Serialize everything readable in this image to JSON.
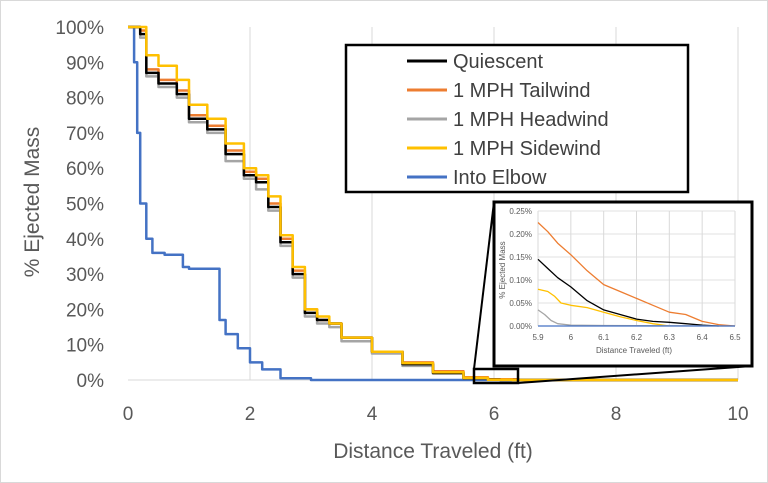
{
  "chart_data": [
    {
      "type": "line",
      "title": "",
      "xlabel": "Distance Traveled (ft)",
      "ylabel": "% Ejected Mass",
      "xlim": [
        0,
        10
      ],
      "ylim": [
        0,
        100
      ],
      "xticks": [
        "0",
        "2",
        "4",
        "6",
        "8",
        "10"
      ],
      "yticks": [
        "0%",
        "10%",
        "20%",
        "30%",
        "40%",
        "50%",
        "60%",
        "70%",
        "80%",
        "90%",
        "100%"
      ],
      "grid": "vertical",
      "legend_position": "top-right",
      "series": [
        {
          "name": "Quiescent",
          "color": "#000000",
          "x": [
            0,
            0.2,
            0.3,
            0.5,
            0.8,
            1.0,
            1.3,
            1.6,
            1.9,
            2.1,
            2.3,
            2.5,
            2.7,
            2.9,
            3.1,
            3.3,
            3.5,
            4.0,
            4.5,
            5.0,
            5.5,
            5.9,
            6.1,
            10
          ],
          "y": [
            100,
            98,
            87,
            84,
            81,
            74,
            71,
            64,
            58,
            56,
            49,
            39,
            30,
            19,
            17,
            16,
            12,
            8,
            4.5,
            2,
            0.5,
            0.14,
            0,
            0
          ]
        },
        {
          "name": "1 MPH Tailwind",
          "color": "#ED7D31",
          "x": [
            0,
            0.2,
            0.3,
            0.5,
            0.8,
            1.0,
            1.3,
            1.6,
            1.9,
            2.1,
            2.3,
            2.5,
            2.7,
            2.9,
            3.1,
            3.3,
            3.5,
            4.0,
            4.5,
            5.0,
            5.5,
            5.9,
            6.4,
            10
          ],
          "y": [
            100,
            99,
            88,
            85,
            82,
            75,
            72,
            65,
            59,
            57,
            50,
            40,
            31,
            20,
            17,
            16,
            12,
            8,
            5,
            2.5,
            0.8,
            0.22,
            0,
            0
          ]
        },
        {
          "name": "1 MPH Headwind",
          "color": "#A5A5A5",
          "x": [
            0,
            0.2,
            0.3,
            0.5,
            0.8,
            1.0,
            1.3,
            1.6,
            1.9,
            2.1,
            2.3,
            2.5,
            2.7,
            2.9,
            3.1,
            3.3,
            3.5,
            4.0,
            4.5,
            5.0,
            5.5,
            5.9,
            6.0,
            10
          ],
          "y": [
            100,
            97,
            86,
            83,
            80,
            73,
            70,
            62,
            57,
            54,
            48,
            38,
            29,
            18,
            16,
            15,
            11,
            7.5,
            4,
            1.8,
            0.4,
            0.03,
            0,
            0
          ]
        },
        {
          "name": "1 MPH Sidewind",
          "color": "#FFC000",
          "x": [
            0,
            0.2,
            0.3,
            0.5,
            0.8,
            1.0,
            1.3,
            1.6,
            1.9,
            2.1,
            2.3,
            2.5,
            2.7,
            2.9,
            3.1,
            3.3,
            3.5,
            4.0,
            4.5,
            5.0,
            5.5,
            5.9,
            6.3,
            10
          ],
          "y": [
            100,
            100,
            92,
            89,
            85,
            78,
            74,
            67,
            60,
            58,
            52,
            41,
            32,
            20,
            18,
            16,
            12,
            8,
            4.8,
            2.2,
            0.6,
            0.08,
            0,
            0
          ]
        },
        {
          "name": "Into Elbow",
          "color": "#4472C4",
          "x": [
            0,
            0.1,
            0.15,
            0.2,
            0.3,
            0.4,
            0.6,
            0.9,
            1.0,
            1.3,
            1.5,
            1.6,
            1.8,
            2.0,
            2.2,
            2.5,
            3.0,
            10
          ],
          "y": [
            100,
            90,
            70,
            50,
            40,
            36,
            35.5,
            32,
            31.5,
            31.5,
            17,
            13,
            9,
            5,
            3,
            0.5,
            0,
            0
          ]
        }
      ]
    },
    {
      "type": "line",
      "title": "",
      "xlabel": "Distance Traveled (ft)",
      "ylabel": "% Ejected Mass",
      "xlim": [
        5.9,
        6.5
      ],
      "ylim": [
        0,
        0.25
      ],
      "xticks": [
        "5.9",
        "6",
        "6.1",
        "6.2",
        "6.3",
        "6.4",
        "6.5"
      ],
      "yticks": [
        "0.00%",
        "0.05%",
        "0.10%",
        "0.15%",
        "0.20%",
        "0.25%"
      ],
      "grid": "both",
      "series": [
        {
          "color": "#ED7D31",
          "x": [
            5.9,
            5.93,
            5.96,
            6.0,
            6.05,
            6.1,
            6.15,
            6.2,
            6.25,
            6.3,
            6.35,
            6.4,
            6.45,
            6.5
          ],
          "y": [
            0.225,
            0.205,
            0.18,
            0.155,
            0.12,
            0.09,
            0.075,
            0.06,
            0.045,
            0.03,
            0.025,
            0.01,
            0.003,
            0
          ]
        },
        {
          "color": "#000000",
          "x": [
            5.9,
            5.93,
            5.96,
            6.0,
            6.05,
            6.1,
            6.15,
            6.2,
            6.25,
            6.3,
            6.35,
            6.4,
            6.45
          ],
          "y": [
            0.145,
            0.125,
            0.105,
            0.085,
            0.055,
            0.035,
            0.025,
            0.015,
            0.01,
            0.008,
            0.005,
            0.002,
            0
          ]
        },
        {
          "color": "#FFC000",
          "x": [
            5.9,
            5.93,
            5.95,
            5.97,
            6.0,
            6.05,
            6.1,
            6.15,
            6.2,
            6.25,
            6.3
          ],
          "y": [
            0.08,
            0.075,
            0.065,
            0.05,
            0.045,
            0.04,
            0.03,
            0.02,
            0.012,
            0.005,
            0
          ]
        },
        {
          "color": "#A5A5A5",
          "x": [
            5.9,
            5.92,
            5.94,
            5.96,
            6.0,
            6.1,
            6.5
          ],
          "y": [
            0.035,
            0.025,
            0.012,
            0.005,
            0.002,
            0.001,
            0
          ]
        },
        {
          "color": "#4472C4",
          "x": [
            5.9,
            6.5
          ],
          "y": [
            0,
            0
          ]
        }
      ]
    }
  ]
}
